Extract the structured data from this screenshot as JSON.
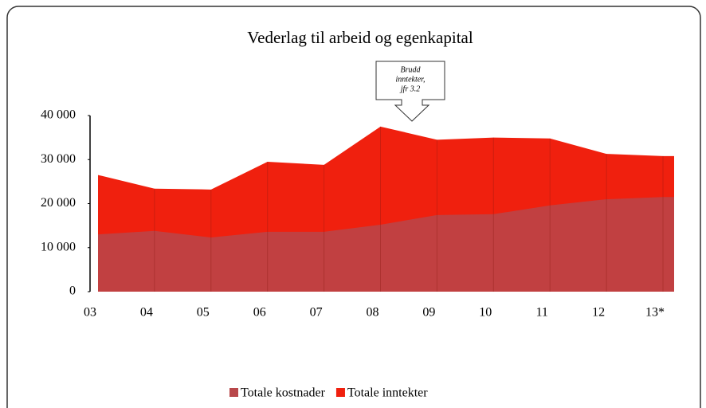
{
  "chart_data": {
    "type": "area",
    "title": "Vederlag til arbeid og egenkapital",
    "annotation": [
      "Brudd",
      "inntekter,",
      "jfr 3.2"
    ],
    "categories": [
      "03",
      "04",
      "05",
      "06",
      "07",
      "08",
      "09",
      "10",
      "11",
      "12",
      "13*"
    ],
    "series": [
      {
        "name": "Totale kostnader",
        "color": "#b8474a",
        "values": [
          13000,
          13800,
          12300,
          13600,
          13600,
          15200,
          17400,
          17600,
          19600,
          21000,
          21500
        ]
      },
      {
        "name": "Totale inntekter",
        "color": "#f0200e",
        "values": [
          26500,
          23400,
          23200,
          29500,
          28800,
          37500,
          34500,
          35000,
          34800,
          31300,
          30800
        ]
      }
    ],
    "ylim": [
      0,
      40000
    ],
    "yticks": [
      0,
      {
        "value": 10000,
        "label": "10 000"
      },
      {
        "value": 20000,
        "label": "20 000"
      },
      {
        "value": 30000,
        "label": "30 000"
      },
      {
        "value": 40000,
        "label": "40 000"
      }
    ]
  }
}
